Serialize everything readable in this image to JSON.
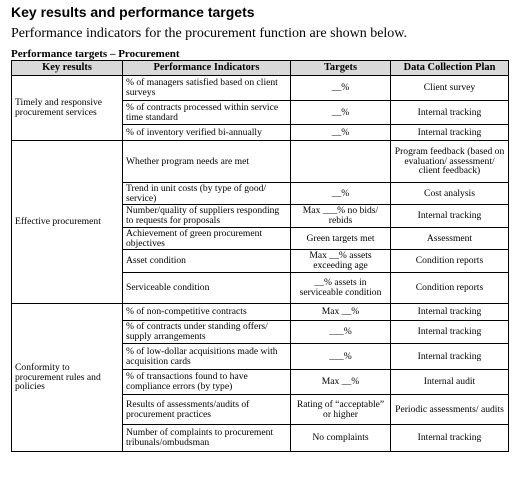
{
  "heading": "Key results and performance targets",
  "intro": "Performance indicators for the procurement function are shown below.",
  "table_caption": "Performance targets – Procurement",
  "columns": [
    "Key results",
    "Performance Indicators",
    "Targets",
    "Data Collection Plan"
  ],
  "groups": [
    {
      "area": "Timely and responsive procurement services",
      "rows": [
        {
          "indicator": "% of managers satisfied based on client surveys",
          "target": "__%",
          "plan": "Client survey"
        },
        {
          "indicator": "% of contracts processed within service time standard",
          "target": "__%",
          "plan": "Internal tracking"
        },
        {
          "indicator": "% of inventory verified bi-annually",
          "target": "__%",
          "plan": "Internal tracking"
        }
      ]
    },
    {
      "area": "Effective procurement",
      "rows": [
        {
          "indicator": "Whether program needs are met",
          "target": "",
          "plan": "Program feedback (based on evaluation/ assessment/ client feedback)"
        },
        {
          "indicator": "Trend in unit costs (by type of good/ service)",
          "target": "__%",
          "plan": "Cost analysis"
        },
        {
          "indicator": "Number/quality of suppliers responding to requests for proposals",
          "target": "Max ___% no bids/ rebids",
          "plan": "Internal tracking"
        },
        {
          "indicator": "Achievement of green procurement objectives",
          "target": "Green targets met",
          "plan": "Assessment"
        },
        {
          "indicator": "Asset condition",
          "target": "Max __% assets exceeding age",
          "plan": "Condition reports"
        },
        {
          "indicator": "Serviceable condition",
          "target": "__% assets in serviceable condition",
          "plan": "Condition reports"
        }
      ]
    },
    {
      "area": "Conformity to procurement rules and policies",
      "rows": [
        {
          "indicator": "% of non-competitive contracts",
          "target": "Max __%",
          "plan": "Internal tracking"
        },
        {
          "indicator": "% of contracts under standing offers/ supply arrangements",
          "target": "___%",
          "plan": "Internal tracking"
        },
        {
          "indicator": "% of low-dollar acquisitions made with acquisition cards",
          "target": "___%",
          "plan": "Internal tracking"
        },
        {
          "indicator": "% of transactions found to have compliance errors (by type)",
          "target": "Max __%",
          "plan": "Internal audit"
        },
        {
          "indicator": "Results of assessments/audits of procurement practices",
          "target": "Rating of “acceptable” or higher",
          "plan": "Periodic assessments/ audits"
        },
        {
          "indicator": "Number of complaints to procurement tribunals/ombudsman",
          "target": "No complaints",
          "plan": "Internal tracking"
        }
      ]
    }
  ]
}
